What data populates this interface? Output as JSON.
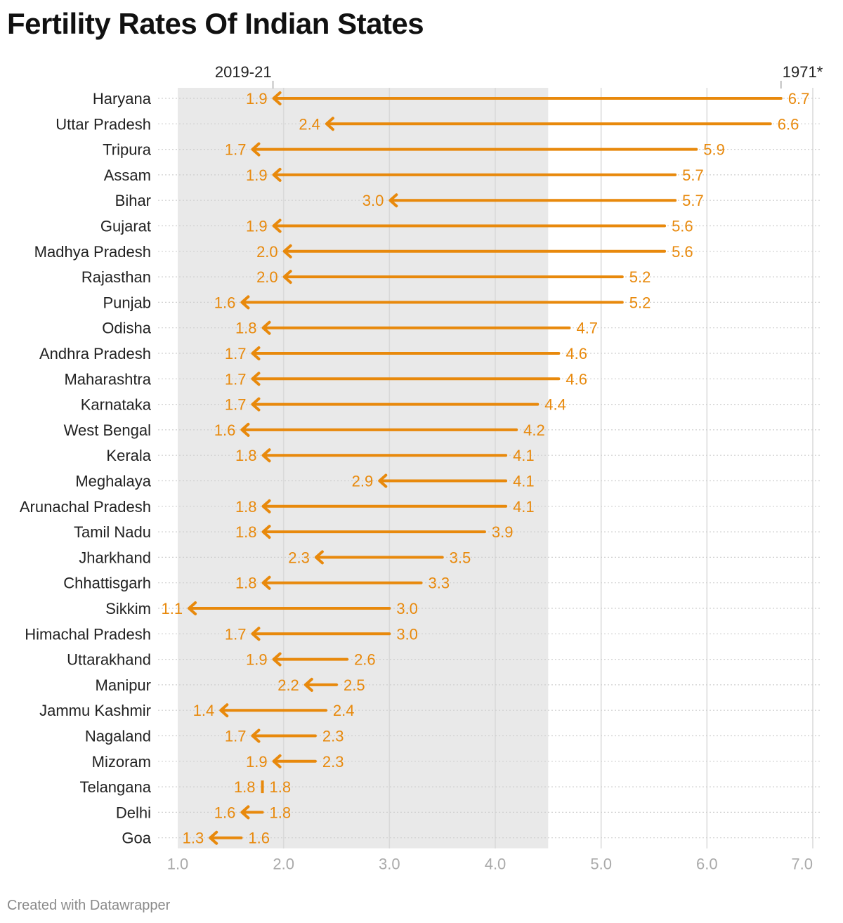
{
  "title": "Fertility Rates Of Indian States",
  "footer": "Created with Datawrapper",
  "colors": {
    "accent": "#e8890c",
    "band": "#e9e9e9",
    "grid": "#d9d9d9",
    "tick": "#aaaaaa",
    "text": "#222222"
  },
  "chart_data": {
    "type": "arrow",
    "title": "Fertility Rates Of Indian States",
    "series_labels": {
      "start": "1971*",
      "end": "2019-21"
    },
    "xlim": [
      1.0,
      7.0
    ],
    "xticks": [
      "1.0",
      "2.0",
      "3.0",
      "4.0",
      "5.0",
      "6.0",
      "7.0"
    ],
    "shaded_range": [
      1.0,
      4.5
    ],
    "rows": [
      {
        "state": "Haryana",
        "y1971": 6.7,
        "y2019": 1.9
      },
      {
        "state": "Uttar Pradesh",
        "y1971": 6.6,
        "y2019": 2.4
      },
      {
        "state": "Tripura",
        "y1971": 5.9,
        "y2019": 1.7
      },
      {
        "state": "Assam",
        "y1971": 5.7,
        "y2019": 1.9
      },
      {
        "state": "Bihar",
        "y1971": 5.7,
        "y2019": 3.0
      },
      {
        "state": "Gujarat",
        "y1971": 5.6,
        "y2019": 1.9
      },
      {
        "state": "Madhya Pradesh",
        "y1971": 5.6,
        "y2019": 2.0
      },
      {
        "state": "Rajasthan",
        "y1971": 5.2,
        "y2019": 2.0
      },
      {
        "state": "Punjab",
        "y1971": 5.2,
        "y2019": 1.6
      },
      {
        "state": "Odisha",
        "y1971": 4.7,
        "y2019": 1.8
      },
      {
        "state": "Andhra Pradesh",
        "y1971": 4.6,
        "y2019": 1.7
      },
      {
        "state": "Maharashtra",
        "y1971": 4.6,
        "y2019": 1.7
      },
      {
        "state": "Karnataka",
        "y1971": 4.4,
        "y2019": 1.7
      },
      {
        "state": "West Bengal",
        "y1971": 4.2,
        "y2019": 1.6
      },
      {
        "state": "Kerala",
        "y1971": 4.1,
        "y2019": 1.8
      },
      {
        "state": "Meghalaya",
        "y1971": 4.1,
        "y2019": 2.9
      },
      {
        "state": "Arunachal Pradesh",
        "y1971": 4.1,
        "y2019": 1.8
      },
      {
        "state": "Tamil Nadu",
        "y1971": 3.9,
        "y2019": 1.8
      },
      {
        "state": "Jharkhand",
        "y1971": 3.5,
        "y2019": 2.3
      },
      {
        "state": "Chhattisgarh",
        "y1971": 3.3,
        "y2019": 1.8
      },
      {
        "state": "Sikkim",
        "y1971": 3.0,
        "y2019": 1.1
      },
      {
        "state": "Himachal Pradesh",
        "y1971": 3.0,
        "y2019": 1.7
      },
      {
        "state": "Uttarakhand",
        "y1971": 2.6,
        "y2019": 1.9
      },
      {
        "state": "Manipur",
        "y1971": 2.5,
        "y2019": 2.2
      },
      {
        "state": "Jammu Kashmir",
        "y1971": 2.4,
        "y2019": 1.4
      },
      {
        "state": "Nagaland",
        "y1971": 2.3,
        "y2019": 1.7
      },
      {
        "state": "Mizoram",
        "y1971": 2.3,
        "y2019": 1.9
      },
      {
        "state": "Telangana",
        "y1971": 1.8,
        "y2019": 1.8
      },
      {
        "state": "Delhi",
        "y1971": 1.8,
        "y2019": 1.6
      },
      {
        "state": "Goa",
        "y1971": 1.6,
        "y2019": 1.3
      }
    ]
  }
}
